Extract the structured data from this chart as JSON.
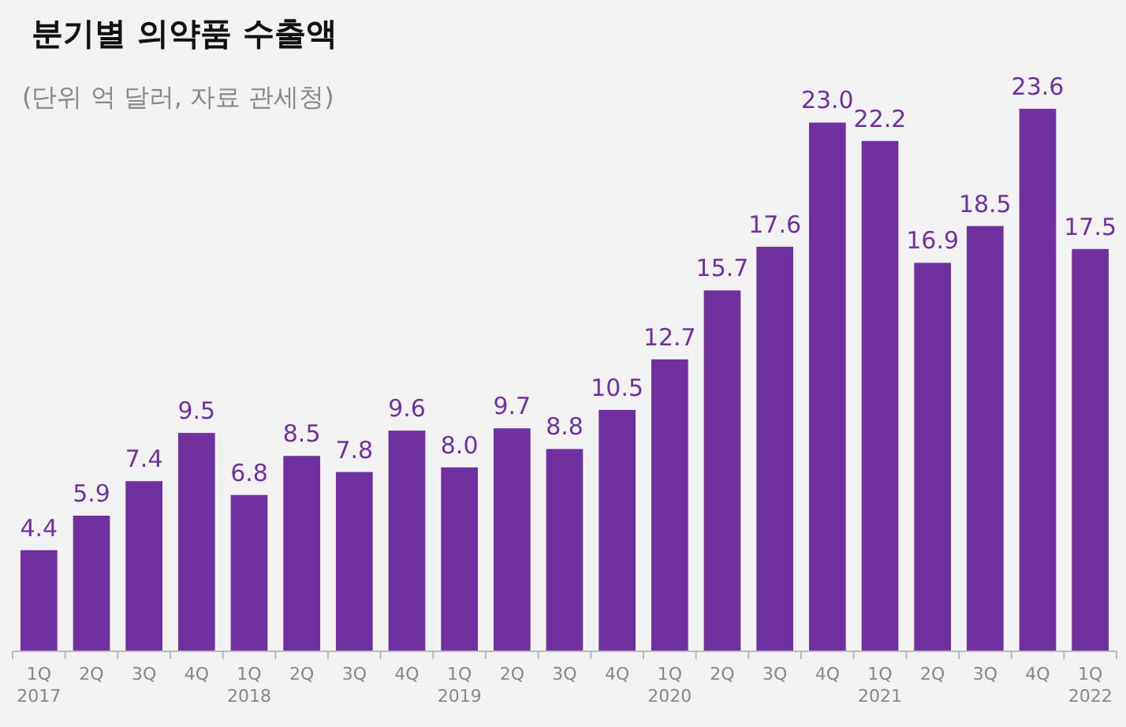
{
  "chart_data": {
    "type": "bar",
    "title": "분기별 의약품 수출액",
    "subtitle": "(단위 억 달러, 자료 관세청)",
    "categories": [
      "1Q\n2017",
      "2Q",
      "3Q",
      "4Q",
      "1Q\n2018",
      "2Q",
      "3Q",
      "4Q",
      "1Q\n2019",
      "2Q",
      "3Q",
      "4Q",
      "1Q\n2020",
      "2Q",
      "3Q",
      "4Q",
      "1Q\n2021",
      "2Q",
      "3Q",
      "4Q",
      "1Q\n2022"
    ],
    "values": [
      4.4,
      5.9,
      7.4,
      9.5,
      6.8,
      8.5,
      7.8,
      9.6,
      8.0,
      9.7,
      8.8,
      10.5,
      12.7,
      15.7,
      17.6,
      23.0,
      22.2,
      16.9,
      18.5,
      23.6,
      17.5
    ],
    "value_labels": [
      "4.4",
      "5.9",
      "7.4",
      "9.5",
      "6.8",
      "8.5",
      "7.8",
      "9.6",
      "8.0",
      "9.7",
      "8.8",
      "10.5",
      "12.7",
      "15.7",
      "17.6",
      "23.0",
      "22.2",
      "16.9",
      "18.5",
      "23.6",
      "17.5"
    ],
    "color": "#7030a0"
  }
}
